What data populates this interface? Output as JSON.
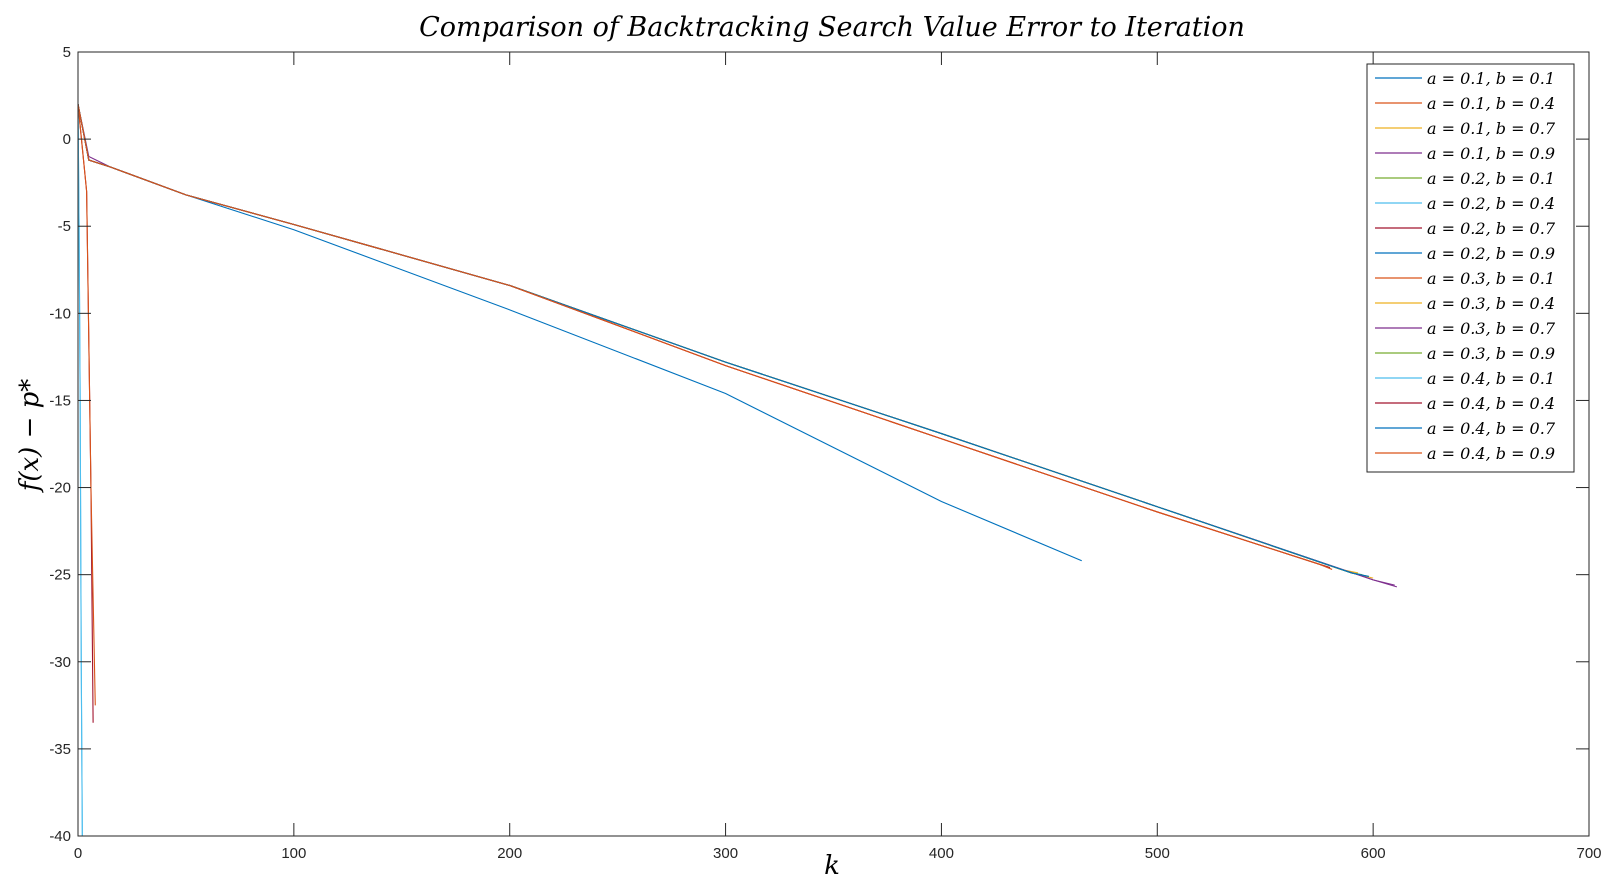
{
  "chart_data": {
    "type": "line",
    "title": "Comparison of Backtracking Search Value Error to Iteration",
    "xlabel": "k",
    "ylabel": "f(x) − p*",
    "xlim": [
      0,
      700
    ],
    "ylim": [
      -40,
      5
    ],
    "xticks": [
      0,
      100,
      200,
      300,
      400,
      500,
      600,
      700
    ],
    "yticks": [
      5,
      0,
      -5,
      -10,
      -15,
      -20,
      -25,
      -30,
      -35,
      -40
    ],
    "grid": false,
    "legend_position": "top-right",
    "series": [
      {
        "name": "a = 0.1,  b = 0.1",
        "color": "#0072BD",
        "x": [
          0,
          5,
          15,
          50,
          100,
          200,
          300,
          400,
          500,
          590,
          597
        ],
        "y": [
          2,
          -1.2,
          -1.6,
          -3.2,
          -4.9,
          -8.4,
          -12.8,
          -16.9,
          -21.1,
          -24.9,
          -25.1
        ]
      },
      {
        "name": "a = 0.1,  b = 0.4",
        "color": "#D95319",
        "x": [
          0,
          5,
          15,
          50,
          100,
          200,
          300,
          400,
          500,
          575,
          580
        ],
        "y": [
          2,
          -1.2,
          -1.6,
          -3.2,
          -4.9,
          -8.4,
          -13.0,
          -17.2,
          -21.4,
          -24.4,
          -24.6
        ]
      },
      {
        "name": "a = 0.1, b = 0.7",
        "color": "#EDB120",
        "x": [
          0,
          5,
          15,
          50,
          100,
          200,
          300,
          400,
          500,
          590,
          600
        ],
        "y": [
          2,
          -1.2,
          -1.6,
          -3.2,
          -4.9,
          -8.4,
          -12.8,
          -16.9,
          -21.1,
          -24.9,
          -25.2
        ]
      },
      {
        "name": "a = 0.1, b = 0.9",
        "color": "#7E2F8E",
        "x": [
          0,
          5,
          15,
          50,
          100,
          200,
          300,
          400,
          500,
          600,
          611
        ],
        "y": [
          2,
          -1.0,
          -1.6,
          -3.2,
          -4.9,
          -8.4,
          -12.8,
          -16.9,
          -21.1,
          -25.3,
          -25.7
        ]
      },
      {
        "name": "a = 0.2, b = 0.1",
        "color": "#77AC30",
        "x": [
          0,
          5,
          15,
          50,
          100,
          200,
          300,
          400,
          500,
          590,
          598
        ],
        "y": [
          2,
          -1.2,
          -1.6,
          -3.2,
          -4.9,
          -8.4,
          -12.8,
          -16.9,
          -21.1,
          -24.9,
          -25.1
        ]
      },
      {
        "name": "a = 0.2, b = 0.4",
        "color": "#4DBEEE",
        "x": [
          0,
          0.5,
          1,
          1.5,
          2
        ],
        "y": [
          2,
          -5,
          -15,
          -30,
          -40
        ]
      },
      {
        "name": "a = 0.2, b = 0.7",
        "color": "#A2142F",
        "x": [
          0,
          2,
          4,
          6,
          7
        ],
        "y": [
          2,
          -0.5,
          -3,
          -20,
          -33.5
        ]
      },
      {
        "name": "a = 0.2, b = 0.9",
        "color": "#0072BD",
        "x": [
          0,
          5,
          15,
          50,
          100,
          200,
          300,
          400,
          465
        ],
        "y": [
          2,
          -1.2,
          -1.6,
          -3.2,
          -5.2,
          -9.8,
          -14.6,
          -20.8,
          -24.2
        ]
      },
      {
        "name": "a = 0.3, b = 0.1",
        "color": "#D95319",
        "x": [
          0,
          2,
          4,
          6,
          8
        ],
        "y": [
          2,
          -0.5,
          -3,
          -20,
          -32.5
        ]
      },
      {
        "name": "a = 0.3, b = 0.4",
        "color": "#EDB120",
        "x": [
          0,
          5,
          15,
          50,
          100,
          200,
          300,
          400,
          500,
          585,
          593
        ],
        "y": [
          2,
          -1.2,
          -1.6,
          -3.2,
          -4.9,
          -8.4,
          -12.8,
          -16.9,
          -21.1,
          -24.7,
          -24.9
        ]
      },
      {
        "name": "a = 0.3, b = 0.7",
        "color": "#7E2F8E",
        "x": [
          0,
          5,
          15,
          50,
          100,
          200,
          300,
          400,
          500,
          600,
          610
        ],
        "y": [
          2,
          -1.2,
          -1.6,
          -3.2,
          -4.9,
          -8.4,
          -12.8,
          -16.9,
          -21.1,
          -25.3,
          -25.6
        ]
      },
      {
        "name": "a = 0.3, b = 0.9",
        "color": "#77AC30",
        "x": [
          0,
          5,
          15,
          50,
          100,
          200,
          300,
          400,
          500,
          590,
          595
        ],
        "y": [
          2,
          -1.2,
          -1.6,
          -3.2,
          -4.9,
          -8.4,
          -12.8,
          -16.9,
          -21.1,
          -24.9,
          -25.0
        ]
      },
      {
        "name": "a = 0.4, b = 0.1",
        "color": "#4DBEEE",
        "x": [
          0,
          0.5,
          1,
          1.5,
          2
        ],
        "y": [
          2,
          -5,
          -15,
          -30,
          -40
        ]
      },
      {
        "name": "a = 0.4, b = 0.4",
        "color": "#A2142F",
        "x": [
          0,
          5,
          15,
          50,
          100,
          200,
          300,
          400,
          500,
          575,
          580
        ],
        "y": [
          2,
          -1.2,
          -1.6,
          -3.2,
          -4.9,
          -8.4,
          -13.0,
          -17.2,
          -21.4,
          -24.4,
          -24.6
        ]
      },
      {
        "name": "a = 0.4, b = 0.7",
        "color": "#0072BD",
        "x": [
          0,
          5,
          15,
          50,
          100,
          200,
          300,
          400,
          500,
          590,
          598
        ],
        "y": [
          2,
          -1.2,
          -1.6,
          -3.2,
          -4.9,
          -8.4,
          -12.8,
          -16.9,
          -21.1,
          -24.9,
          -25.1
        ]
      },
      {
        "name": "a = 0.4, b = 0.9",
        "color": "#D95319",
        "x": [
          0,
          5,
          15,
          50,
          100,
          200,
          300,
          400,
          500,
          575,
          581
        ],
        "y": [
          2,
          -1.2,
          -1.6,
          -3.2,
          -4.9,
          -8.4,
          -13.0,
          -17.2,
          -21.4,
          -24.4,
          -24.7
        ]
      }
    ]
  }
}
